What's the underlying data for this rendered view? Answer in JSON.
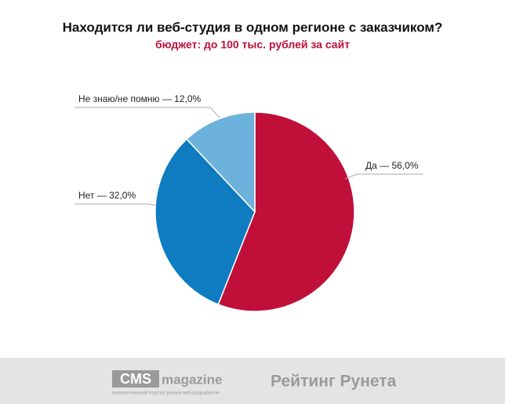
{
  "chart_data": {
    "type": "pie",
    "title": "Находится ли веб-студия в одном регионе с заказчиком?",
    "subtitle": "бюджет: до 100 тыс. рублей за сайт",
    "values": [
      56,
      32,
      12
    ],
    "value_labels": [
      "Да — 56,0%",
      "Нет — 32,0%",
      "Не знаю/не помню — 12,0%"
    ],
    "colors": [
      "#c0103a",
      "#0f7bc0",
      "#6db1dd"
    ]
  },
  "footer": {
    "logo": "CMS",
    "logo_suffix": "magazine",
    "logo_tagline": "аналитический портал рынка веб-разработок",
    "rating": "Рейтинг Рунета"
  }
}
